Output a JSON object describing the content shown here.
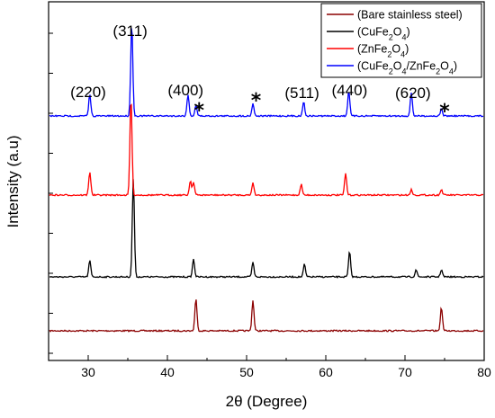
{
  "chart_data": {
    "type": "line",
    "xlabel": "2θ (Degree)",
    "ylabel": "Intensity (a.u)",
    "xlim": [
      25,
      80
    ],
    "x_ticks": [
      30,
      40,
      50,
      60,
      70,
      80
    ],
    "y_ticks_shown": false,
    "grid": false,
    "legend_position": "top-right",
    "series": [
      {
        "name": "(Bare stainless steel)",
        "legend_parts": [
          {
            "t": "(Bare stainless steel)",
            "sub": false
          }
        ],
        "color": "#8b0000",
        "baseline": 0,
        "peaks": [
          [
            43.6,
            18
          ],
          [
            50.8,
            17
          ],
          [
            74.6,
            13
          ]
        ]
      },
      {
        "name": "(CuFe2O4)",
        "legend_parts": [
          {
            "t": "(CuFe",
            "sub": false
          },
          {
            "t": "2",
            "sub": true
          },
          {
            "t": "O",
            "sub": false
          },
          {
            "t": "4",
            "sub": true
          },
          {
            "t": ")",
            "sub": false
          }
        ],
        "color": "#000000",
        "baseline": 1,
        "peaks": [
          [
            30.2,
            9
          ],
          [
            35.7,
            55
          ],
          [
            43.3,
            10
          ],
          [
            50.8,
            8
          ],
          [
            57.3,
            7
          ],
          [
            63.0,
            14
          ],
          [
            71.4,
            4
          ],
          [
            74.6,
            4
          ]
        ]
      },
      {
        "name": "(ZnFe2O4)",
        "legend_parts": [
          {
            "t": "(ZnFe",
            "sub": false
          },
          {
            "t": "2",
            "sub": true
          },
          {
            "t": "O",
            "sub": false
          },
          {
            "t": "4",
            "sub": true
          },
          {
            "t": ")",
            "sub": false
          }
        ],
        "color": "#ff0000",
        "baseline": 2,
        "peaks": [
          [
            30.2,
            13
          ],
          [
            35.4,
            55
          ],
          [
            42.9,
            8
          ],
          [
            43.3,
            7
          ],
          [
            50.8,
            7
          ],
          [
            56.9,
            6
          ],
          [
            62.5,
            12
          ],
          [
            70.8,
            3
          ],
          [
            74.6,
            3
          ]
        ]
      },
      {
        "name": "(CuFe2O4/ZnFe2O4)",
        "legend_parts": [
          {
            "t": "(CuFe",
            "sub": false
          },
          {
            "t": "2",
            "sub": true
          },
          {
            "t": "O",
            "sub": false
          },
          {
            "t": "4",
            "sub": true
          },
          {
            "t": "/ZnFe",
            "sub": false
          },
          {
            "t": "2",
            "sub": true
          },
          {
            "t": "O",
            "sub": false
          },
          {
            "t": "4",
            "sub": true
          },
          {
            "t": ")",
            "sub": false
          }
        ],
        "color": "#0000ff",
        "baseline": 3,
        "peaks": [
          [
            30.2,
            12
          ],
          [
            35.5,
            52
          ],
          [
            42.6,
            12
          ],
          [
            43.6,
            6
          ],
          [
            50.8,
            7
          ],
          [
            57.2,
            8
          ],
          [
            62.9,
            14
          ],
          [
            70.8,
            13
          ],
          [
            74.6,
            4
          ]
        ]
      }
    ],
    "annotations": [
      {
        "text": "(220)",
        "x": 30.0
      },
      {
        "text": "(311)",
        "x": 35.3
      },
      {
        "text": "(400)",
        "x": 42.3
      },
      {
        "text": "(511)",
        "x": 57.0
      },
      {
        "text": "(440)",
        "x": 63.0
      },
      {
        "text": "(620)",
        "x": 71.0
      }
    ],
    "markers": [
      {
        "text": "*",
        "x": 44.0
      },
      {
        "text": "*",
        "x": 51.2
      },
      {
        "text": "*",
        "x": 75.0
      }
    ]
  }
}
